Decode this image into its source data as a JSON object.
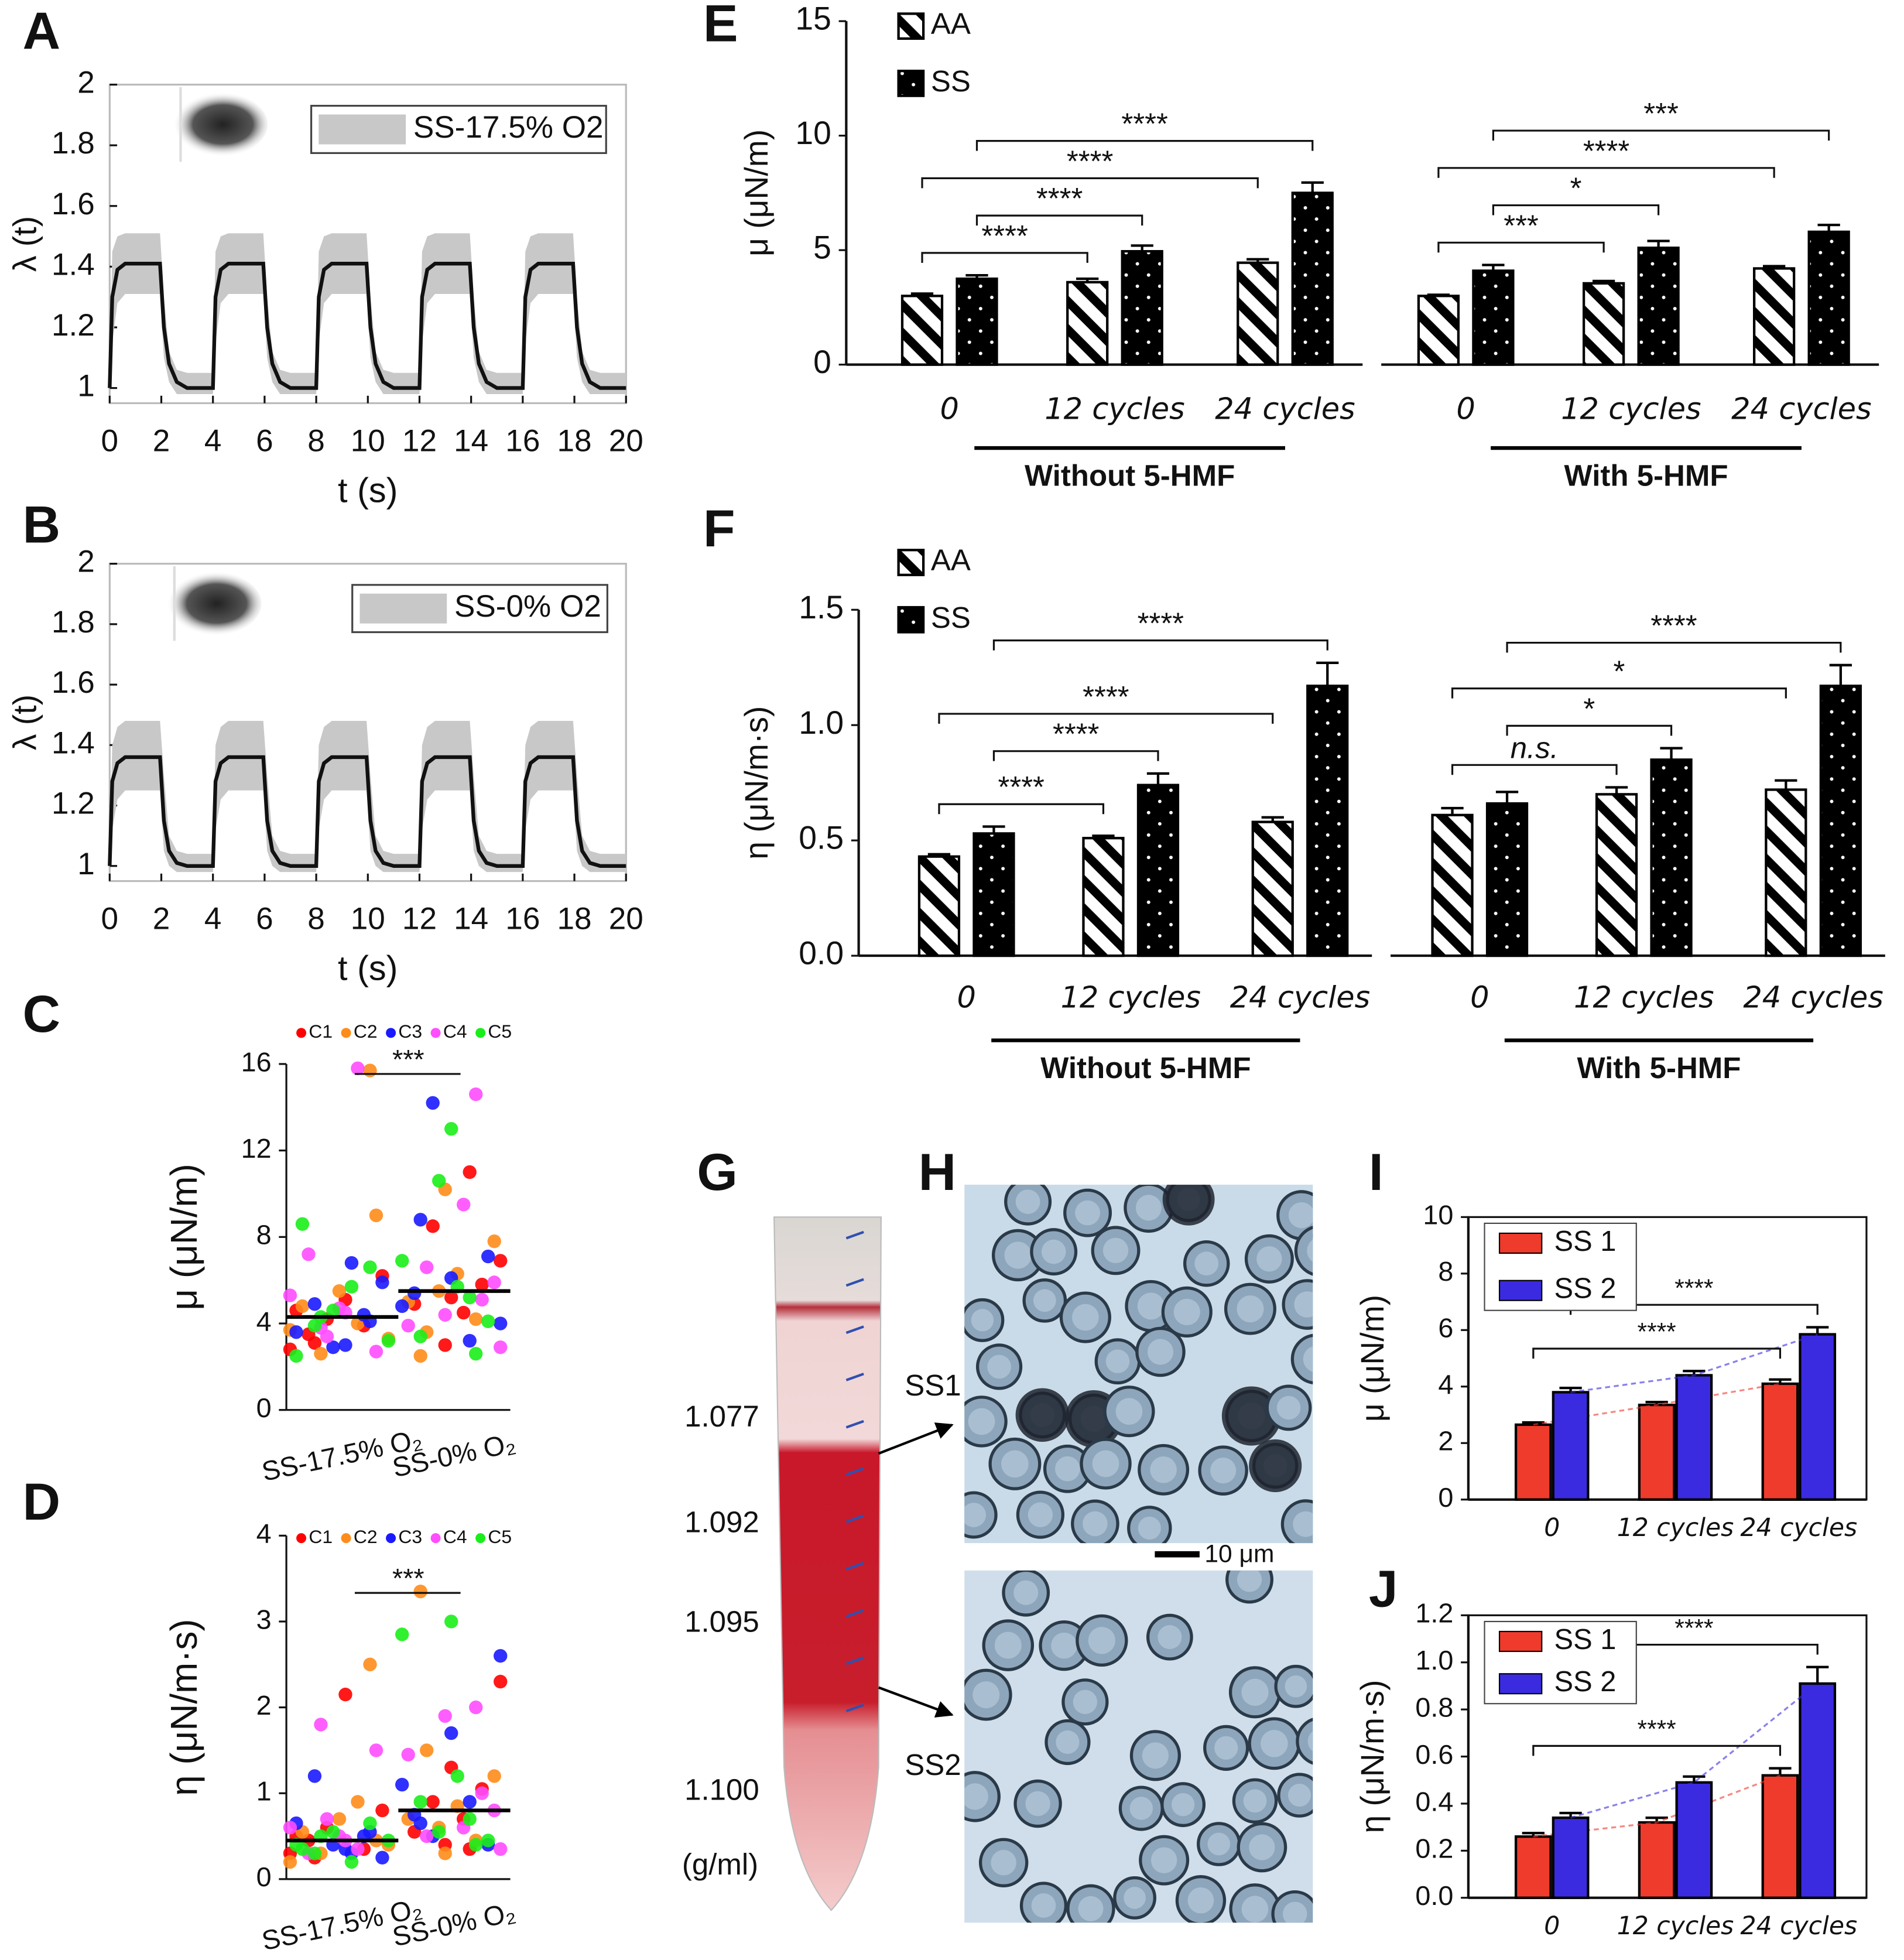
{
  "chart_data": [
    {
      "panel": "A",
      "type": "line",
      "xlabel": "t (s)",
      "ylabel": "λ (t)",
      "color": "#111111",
      "x": [
        0,
        0.1,
        0.3,
        0.6,
        1.95,
        2.1,
        2.3,
        2.6,
        3,
        4,
        4.1,
        4.3,
        4.6,
        5.95,
        6.1,
        6.3,
        6.6,
        7,
        8,
        8.1,
        8.3,
        8.6,
        9.95,
        10.1,
        10.3,
        10.6,
        11,
        12,
        12.1,
        12.3,
        12.6,
        13.95,
        14.1,
        14.3,
        14.6,
        15,
        16,
        16.1,
        16.3,
        16.6,
        17.95,
        18.1,
        18.3,
        18.6,
        19,
        20
      ],
      "values": [
        1,
        1.3,
        1.39,
        1.41,
        1.41,
        1.2,
        1.08,
        1.02,
        1,
        1,
        1.3,
        1.39,
        1.41,
        1.41,
        1.2,
        1.08,
        1.02,
        1,
        1,
        1.3,
        1.39,
        1.41,
        1.41,
        1.2,
        1.08,
        1.02,
        1,
        1,
        1.3,
        1.39,
        1.41,
        1.41,
        1.2,
        1.08,
        1.02,
        1,
        1,
        1.3,
        1.39,
        1.41,
        1.41,
        1.2,
        1.08,
        1.02,
        1,
        1
      ],
      "band": {
        "name": "SS-17.5% O2",
        "color": "#c8c8c8",
        "upper": [
          1.05,
          1.45,
          1.5,
          1.51,
          1.51,
          1.3,
          1.12,
          1.06,
          1.05,
          1.05,
          1.45,
          1.5,
          1.51,
          1.51,
          1.3,
          1.12,
          1.06,
          1.05,
          1.05,
          1.45,
          1.5,
          1.51,
          1.51,
          1.3,
          1.12,
          1.06,
          1.05,
          1.05,
          1.45,
          1.5,
          1.51,
          1.51,
          1.3,
          1.12,
          1.06,
          1.05,
          1.05,
          1.45,
          1.5,
          1.51,
          1.51,
          1.3,
          1.12,
          1.06,
          1.05,
          1.05
        ],
        "lower": [
          0.98,
          1.15,
          1.28,
          1.31,
          1.31,
          1.1,
          1.02,
          0.98,
          0.98,
          0.98,
          1.15,
          1.28,
          1.31,
          1.31,
          1.1,
          1.02,
          0.98,
          0.98,
          0.98,
          1.15,
          1.28,
          1.31,
          1.31,
          1.1,
          1.02,
          0.98,
          0.98,
          0.98,
          1.15,
          1.28,
          1.31,
          1.31,
          1.1,
          1.02,
          0.98,
          0.98,
          0.98,
          1.15,
          1.28,
          1.31,
          1.31,
          1.1,
          1.02,
          0.98,
          0.98,
          0.98
        ]
      },
      "xlim": [
        0,
        20
      ],
      "xticks": [
        0,
        2,
        4,
        6,
        8,
        10,
        12,
        14,
        16,
        18,
        20
      ],
      "ylim": [
        0.95,
        2
      ],
      "yticks": [
        1,
        1.2,
        1.4,
        1.6,
        1.8,
        2
      ]
    },
    {
      "panel": "B",
      "type": "line",
      "xlabel": "t (s)",
      "ylabel": "λ (t)",
      "color": "#111111",
      "x": [
        0,
        0.1,
        0.3,
        0.6,
        1.95,
        2.1,
        2.3,
        2.6,
        3,
        4,
        4.1,
        4.3,
        4.6,
        5.95,
        6.1,
        6.3,
        6.6,
        7,
        8,
        8.1,
        8.3,
        8.6,
        9.95,
        10.1,
        10.3,
        10.6,
        11,
        12,
        12.1,
        12.3,
        12.6,
        13.95,
        14.1,
        14.3,
        14.6,
        15,
        16,
        16.1,
        16.3,
        16.6,
        17.95,
        18.1,
        18.3,
        18.6,
        19,
        20
      ],
      "values": [
        1,
        1.28,
        1.34,
        1.36,
        1.36,
        1.15,
        1.05,
        1.01,
        1,
        1,
        1.28,
        1.34,
        1.36,
        1.36,
        1.15,
        1.05,
        1.01,
        1,
        1,
        1.28,
        1.34,
        1.36,
        1.36,
        1.15,
        1.05,
        1.01,
        1,
        1,
        1.28,
        1.34,
        1.36,
        1.36,
        1.15,
        1.05,
        1.01,
        1,
        1,
        1.28,
        1.34,
        1.36,
        1.36,
        1.15,
        1.05,
        1.01,
        1,
        1
      ],
      "band": {
        "name": "SS-0% O2",
        "color": "#c8c8c8",
        "upper": [
          1.04,
          1.4,
          1.46,
          1.48,
          1.48,
          1.3,
          1.1,
          1.05,
          1.04,
          1.04,
          1.4,
          1.46,
          1.48,
          1.48,
          1.3,
          1.1,
          1.05,
          1.04,
          1.04,
          1.4,
          1.46,
          1.48,
          1.48,
          1.3,
          1.1,
          1.05,
          1.04,
          1.04,
          1.4,
          1.46,
          1.48,
          1.48,
          1.3,
          1.1,
          1.05,
          1.04,
          1.04,
          1.4,
          1.46,
          1.48,
          1.48,
          1.3,
          1.1,
          1.05,
          1.04,
          1.04
        ],
        "lower": [
          0.98,
          1.12,
          1.22,
          1.25,
          1.25,
          1.05,
          1,
          0.98,
          0.98,
          0.98,
          1.12,
          1.22,
          1.25,
          1.25,
          1.05,
          1,
          0.98,
          0.98,
          0.98,
          1.12,
          1.22,
          1.25,
          1.25,
          1.05,
          1,
          0.98,
          0.98,
          0.98,
          1.12,
          1.22,
          1.25,
          1.25,
          1.05,
          1,
          0.98,
          0.98,
          0.98,
          1.12,
          1.22,
          1.25,
          1.25,
          1.05,
          1,
          0.98,
          0.98,
          0.98
        ]
      },
      "xlim": [
        0,
        20
      ],
      "xticks": [
        0,
        2,
        4,
        6,
        8,
        10,
        12,
        14,
        16,
        18,
        20
      ],
      "ylim": [
        0.95,
        2
      ],
      "yticks": [
        1,
        1.2,
        1.4,
        1.6,
        1.8,
        2
      ]
    },
    {
      "panel": "C",
      "type": "strip",
      "ylabel": "μ (μN/m)",
      "categories": [
        "SS-17.5% O₂",
        "SS-0% O₂"
      ],
      "series": [
        {
          "name": "C1",
          "color": "#ff0000",
          "values": [
            [
              2.8,
              3.5,
              4.2,
              5.1,
              3.9,
              6.2,
              4.6,
              3.1
            ],
            [
              3.0,
              4.5,
              5.8,
              6.9,
              4.9,
              8.5,
              5.2,
              11.0
            ]
          ]
        },
        {
          "name": "C2",
          "color": "#ff8c1a",
          "values": [
            [
              15.7,
              3.3,
              4.8,
              2.6,
              5.5,
              4.0,
              9.0,
              3.7
            ],
            [
              2.5,
              5.5,
              6.3,
              4.2,
              7.8,
              5.0,
              3.6,
              10.2
            ]
          ]
        },
        {
          "name": "C3",
          "color": "#1a1aff",
          "values": [
            [
              3.0,
              4.4,
              5.9,
              3.6,
              4.9,
              2.9,
              6.8,
              4.1
            ],
            [
              4.0,
              5.4,
              14.2,
              6.1,
              3.2,
              7.1,
              4.8,
              8.8
            ]
          ]
        },
        {
          "name": "C4",
          "color": "#ff4dff",
          "values": [
            [
              3.8,
              4.7,
              15.8,
              2.7,
              5.3,
              7.2,
              3.4,
              4.5
            ],
            [
              14.6,
              5.9,
              3.9,
              6.6,
              4.4,
              9.5,
              5.1,
              2.9
            ]
          ]
        },
        {
          "name": "C5",
          "color": "#1aee1a",
          "values": [
            [
              2.5,
              3.9,
              4.6,
              5.7,
              6.6,
              3.2,
              8.6,
              4.3
            ],
            [
              13.0,
              5.2,
              4.1,
              6.9,
              3.4,
              10.6,
              5.7,
              2.6
            ]
          ]
        }
      ],
      "means": [
        4.3,
        5.5
      ],
      "mean_color": "#000000",
      "significance": "***",
      "ylim": [
        0,
        16
      ],
      "yticks": [
        0,
        4,
        8,
        12,
        16
      ]
    },
    {
      "panel": "D",
      "type": "strip",
      "ylabel": "η (μN/m·s)",
      "categories": [
        "SS-17.5% O₂",
        "SS-0% O₂"
      ],
      "series": [
        {
          "name": "C1",
          "color": "#ff0000",
          "values": [
            [
              0.3,
              0.45,
              0.6,
              2.15,
              0.35,
              0.8,
              0.5,
              0.25
            ],
            [
              0.4,
              0.7,
              1.05,
              2.3,
              0.55,
              0.9,
              1.3,
              0.35
            ]
          ]
        },
        {
          "name": "C2",
          "color": "#ff8c1a",
          "values": [
            [
              2.5,
              0.4,
              0.55,
              0.3,
              0.7,
              0.9,
              0.45,
              0.2
            ],
            [
              3.35,
              0.6,
              0.85,
              0.45,
              1.2,
              0.7,
              1.5,
              0.3
            ]
          ]
        },
        {
          "name": "C3",
          "color": "#1a1aff",
          "values": [
            [
              0.35,
              0.5,
              0.25,
              0.65,
              1.2,
              0.4,
              0.3,
              0.55
            ],
            [
              2.6,
              0.75,
              0.5,
              1.7,
              0.9,
              0.4,
              1.1,
              0.65
            ]
          ]
        },
        {
          "name": "C4",
          "color": "#ff4dff",
          "values": [
            [
              1.8,
              0.5,
              0.35,
              1.5,
              0.6,
              0.3,
              0.7,
              0.45
            ],
            [
              2.0,
              0.8,
              1.45,
              0.5,
              1.9,
              0.6,
              1.0,
              0.35
            ]
          ]
        },
        {
          "name": "C5",
          "color": "#1aee1a",
          "values": [
            [
              0.4,
              0.3,
              0.55,
              0.2,
              0.65,
              0.45,
              0.35,
              0.5
            ],
            [
              3.0,
              0.7,
              0.45,
              2.85,
              0.9,
              0.55,
              1.2,
              0.4
            ]
          ]
        }
      ],
      "means": [
        0.45,
        0.8
      ],
      "mean_color": "#000000",
      "significance": "***",
      "ylim": [
        0,
        4
      ],
      "yticks": [
        0,
        1,
        2,
        3,
        4
      ]
    },
    {
      "panel": "E",
      "type": "bar",
      "ylabel": "μ (μN/m)",
      "categories": [
        "0",
        "12 cycles",
        "24 cycles",
        "0",
        "12 cycles",
        "24 cycles"
      ],
      "groups": [
        "Without 5-HMF",
        "With 5-HMF"
      ],
      "series": [
        {
          "name": "AA",
          "pattern": "hatch",
          "values": [
            3.0,
            3.6,
            4.45,
            3.0,
            3.55,
            4.2
          ],
          "errors": [
            0.1,
            0.15,
            0.15,
            0.05,
            0.1,
            0.1
          ]
        },
        {
          "name": "SS",
          "pattern": "dots",
          "values": [
            3.75,
            4.95,
            7.5,
            4.1,
            5.1,
            5.8
          ],
          "errors": [
            0.15,
            0.25,
            0.45,
            0.25,
            0.3,
            0.3
          ]
        }
      ],
      "annotations": [
        [
          "****",
          "****",
          "****",
          "****"
        ],
        [
          "***",
          "*",
          "****",
          "***"
        ]
      ],
      "ylim": [
        0,
        15
      ],
      "yticks": [
        0,
        5,
        10,
        15
      ]
    },
    {
      "panel": "F",
      "type": "bar",
      "ylabel": "η (μN/m·s)",
      "categories": [
        "0",
        "12 cycles",
        "24 cycles",
        "0",
        "12 cycles",
        "24 cycles"
      ],
      "groups": [
        "Without 5-HMF",
        "With 5-HMF"
      ],
      "series": [
        {
          "name": "AA",
          "pattern": "hatch",
          "values": [
            0.43,
            0.51,
            0.58,
            0.61,
            0.7,
            0.72
          ],
          "errors": [
            0.01,
            0.01,
            0.02,
            0.03,
            0.03,
            0.04
          ]
        },
        {
          "name": "SS",
          "pattern": "dots",
          "values": [
            0.53,
            0.74,
            1.17,
            0.66,
            0.85,
            1.17
          ],
          "errors": [
            0.03,
            0.05,
            0.1,
            0.05,
            0.05,
            0.09
          ]
        }
      ],
      "annotations": [
        [
          "****",
          "****",
          "****",
          "****"
        ],
        [
          "n.s.",
          "*",
          "*",
          "****"
        ]
      ],
      "ylim": [
        0,
        1.5
      ],
      "yticks": [
        {
          "value": 0,
          "label": "0.0"
        },
        0.5,
        {
          "value": 1,
          "label": "1.0"
        },
        1.5
      ]
    },
    {
      "panel": "I",
      "type": "bar",
      "ylabel": "μ (μN/m)",
      "categories": [
        "0",
        "12 cycles",
        "24 cycles"
      ],
      "series": [
        {
          "name": "SS 1",
          "color": "#ee3b2b",
          "values": [
            2.65,
            3.35,
            4.1
          ],
          "errors": [
            0.08,
            0.1,
            0.15
          ]
        },
        {
          "name": "SS 2",
          "color": "#3a2be0",
          "values": [
            3.8,
            4.4,
            5.85
          ],
          "errors": [
            0.15,
            0.15,
            0.25
          ]
        }
      ],
      "annotations": [
        [
          "****",
          "****"
        ]
      ],
      "trend": true,
      "ylim": [
        0,
        10
      ],
      "yticks": [
        0,
        2,
        4,
        6,
        8,
        10
      ]
    },
    {
      "panel": "J",
      "type": "bar",
      "ylabel": "η (μN/m·s)",
      "categories": [
        "0",
        "12 cycles",
        "24 cycles"
      ],
      "series": [
        {
          "name": "SS 1",
          "color": "#ee3b2b",
          "values": [
            0.26,
            0.32,
            0.52
          ],
          "errors": [
            0.015,
            0.02,
            0.03
          ]
        },
        {
          "name": "SS 2",
          "color": "#3a2be0",
          "values": [
            0.34,
            0.49,
            0.91
          ],
          "errors": [
            0.02,
            0.025,
            0.07
          ]
        }
      ],
      "annotations": [
        [
          "****",
          "****"
        ]
      ],
      "trend": true,
      "ylim": [
        0,
        1.2
      ],
      "yticks": [
        {
          "value": 0,
          "label": "0.0"
        },
        0.2,
        0.4,
        0.6,
        0.8,
        {
          "value": 1,
          "label": "1.0"
        },
        1.2
      ]
    }
  ],
  "figures": [
    {
      "panel": "G",
      "density_labels": [
        "1.077",
        "1.092",
        "1.095",
        "1.100"
      ],
      "unit": "(g/ml)",
      "band_labels": [
        "SS1",
        "SS2"
      ]
    },
    {
      "panel": "H",
      "scale_bar": "10 μm"
    }
  ]
}
